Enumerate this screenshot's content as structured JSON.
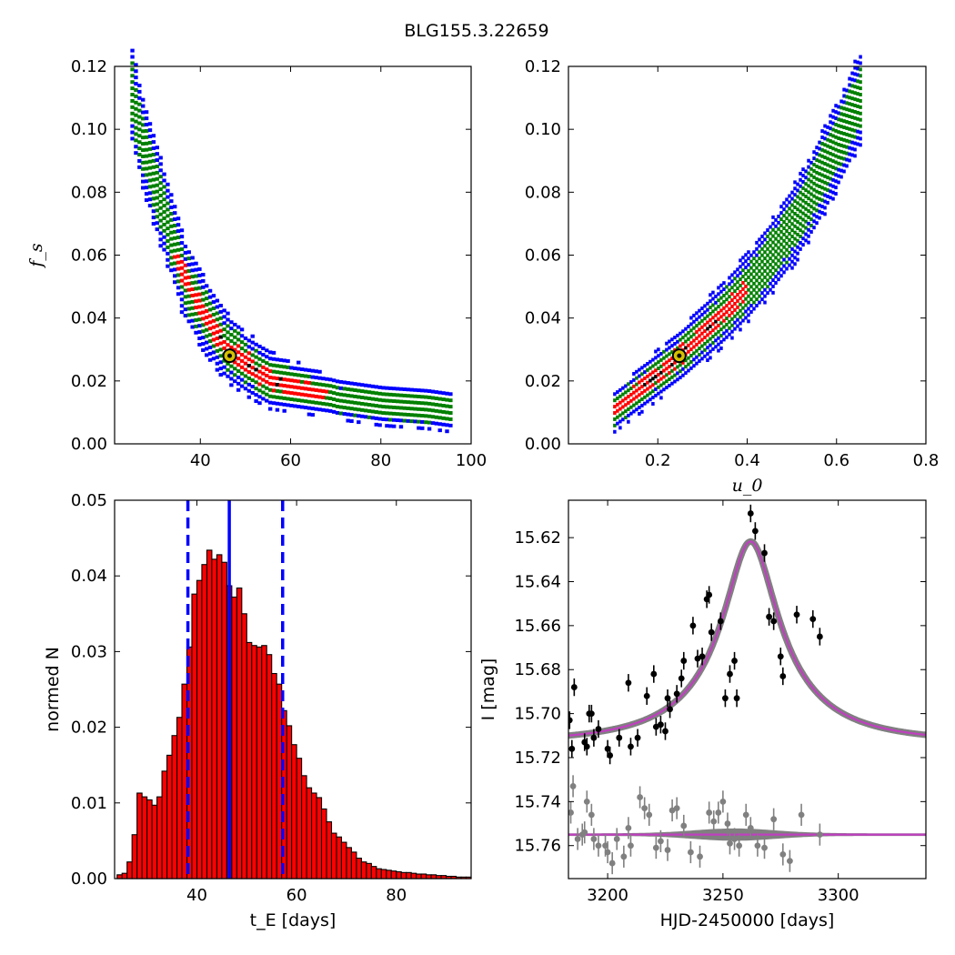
{
  "title": "BLG155.3.22659",
  "colors": {
    "contour_outer": "#0000ff",
    "contour_mid": "#008000",
    "contour_inner": "#ff0000",
    "contour_core": "#000000",
    "best_fit_marker": "#d6c000",
    "hist_bar": "#ff0000",
    "hist_line": "#0000ff",
    "model_line": "#bf3fbf",
    "model_band": "#808080",
    "data_primary": "#000000",
    "data_secondary": "#808080"
  },
  "chart_data": [
    {
      "id": "tE_fs",
      "type": "heatmap",
      "xlabel": "",
      "ylabel": "f_s",
      "xlim": [
        21,
        100
      ],
      "ylim": [
        0.0,
        0.12
      ],
      "xticks": [
        40,
        60,
        80,
        100
      ],
      "yticks": [
        0.0,
        0.02,
        0.04,
        0.06,
        0.08,
        0.1,
        0.12
      ],
      "xtick_labels": [
        "40",
        "60",
        "80",
        "100"
      ],
      "ytick_labels": [
        "0.00",
        "0.02",
        "0.04",
        "0.06",
        "0.08",
        "0.10",
        "0.12"
      ],
      "ridge": {
        "x": [
          24.5,
          27,
          30,
          33,
          36,
          40,
          45,
          50,
          55,
          60,
          65,
          70,
          80,
          90,
          95
        ],
        "y": [
          0.11,
          0.095,
          0.08,
          0.067,
          0.052,
          0.042,
          0.031,
          0.025,
          0.02,
          0.018,
          0.016,
          0.014,
          0.012,
          0.011,
          0.01
        ]
      },
      "best_fit": {
        "x": 46.5,
        "y": 0.028
      }
    },
    {
      "id": "u0_fs",
      "type": "heatmap",
      "xlabel": "u_0",
      "ylabel": "",
      "xlim": [
        0.0,
        0.8
      ],
      "ylim": [
        0.0,
        0.12
      ],
      "xticks": [
        0.2,
        0.4,
        0.6,
        0.8
      ],
      "yticks": [
        0.0,
        0.02,
        0.04,
        0.06,
        0.08,
        0.1,
        0.12
      ],
      "xtick_labels": [
        "0.2",
        "0.4",
        "0.6",
        "0.8"
      ],
      "ytick_labels": [
        "0.00",
        "0.02",
        "0.04",
        "0.06",
        "0.08",
        "0.10",
        "0.12"
      ],
      "ridge": {
        "x": [
          0.1,
          0.15,
          0.2,
          0.25,
          0.3,
          0.35,
          0.4,
          0.45,
          0.5,
          0.55,
          0.6,
          0.65
        ],
        "y": [
          0.01,
          0.016,
          0.022,
          0.028,
          0.035,
          0.042,
          0.05,
          0.059,
          0.069,
          0.081,
          0.095,
          0.11
        ]
      },
      "best_fit": {
        "x": 0.248,
        "y": 0.028
      }
    },
    {
      "id": "tE_hist",
      "type": "bar",
      "xlabel": "t_E  [days]",
      "ylabel": "normed N",
      "xlim": [
        23.5,
        95
      ],
      "ylim": [
        0.0,
        0.05
      ],
      "xticks": [
        40,
        60,
        80
      ],
      "yticks": [
        0.0,
        0.01,
        0.02,
        0.03,
        0.04,
        0.05
      ],
      "xtick_labels": [
        "40",
        "60",
        "80"
      ],
      "ytick_labels": [
        "0.00",
        "0.01",
        "0.02",
        "0.03",
        "0.04",
        "0.05"
      ],
      "bin_start": 24.0,
      "bin_width": 1.0,
      "values": [
        0.0005,
        0.0007,
        0.0022,
        0.0058,
        0.0113,
        0.0108,
        0.0104,
        0.0097,
        0.0108,
        0.0142,
        0.0163,
        0.0189,
        0.0213,
        0.0257,
        0.0306,
        0.0376,
        0.0394,
        0.0415,
        0.0434,
        0.0422,
        0.0428,
        0.0418,
        0.0387,
        0.0372,
        0.0384,
        0.035,
        0.0312,
        0.0308,
        0.0306,
        0.0308,
        0.0296,
        0.0271,
        0.0257,
        0.0222,
        0.0202,
        0.0177,
        0.0159,
        0.0136,
        0.012,
        0.0113,
        0.0107,
        0.0092,
        0.0075,
        0.006,
        0.0055,
        0.0048,
        0.0041,
        0.0035,
        0.0027,
        0.0022,
        0.002,
        0.0016,
        0.0013,
        0.0012,
        0.0011,
        0.001,
        0.0009,
        0.0008,
        0.0008,
        0.0007,
        0.0006,
        0.0006,
        0.0005,
        0.0005,
        0.0004,
        0.0004,
        0.0003,
        0.0003,
        0.0002,
        0.0002,
        0.0002
      ],
      "vlines": [
        {
          "x": 46.5,
          "style": "solid"
        },
        {
          "x": 38.2,
          "style": "dashed"
        },
        {
          "x": 57.2,
          "style": "dashed"
        }
      ]
    },
    {
      "id": "lightcurve",
      "type": "scatter",
      "xlabel": "HJD-2450000 [days]",
      "ylabel": "I [mag]",
      "xlim": [
        3183,
        3338
      ],
      "ylim": [
        15.775,
        15.603
      ],
      "y_inverted": true,
      "xticks": [
        3200,
        3250,
        3300
      ],
      "yticks": [
        15.62,
        15.64,
        15.66,
        15.68,
        15.7,
        15.72,
        15.74,
        15.76
      ],
      "xtick_labels": [
        "3200",
        "3250",
        "3300"
      ],
      "ytick_labels": [
        "15.62",
        "15.64",
        "15.66",
        "15.68",
        "15.70",
        "15.72",
        "15.74",
        "15.76"
      ],
      "model": {
        "t0": 3262,
        "u0": 0.248,
        "tE": 46.5,
        "fs": 0.028,
        "I_base": 15.7128
      },
      "series": [
        {
          "role": "primary",
          "x": [
            3183.5,
            3184.5,
            3185.5,
            3190,
            3191,
            3192,
            3193,
            3194,
            3196,
            3200,
            3201,
            3205,
            3209,
            3210,
            3213,
            3217,
            3220,
            3221,
            3223,
            3225,
            3226,
            3227,
            3230,
            3232,
            3233,
            3237,
            3239,
            3241,
            3243,
            3244,
            3245,
            3249,
            3251,
            3253,
            3255,
            3256,
            3262,
            3264,
            3268,
            3270,
            3272,
            3275,
            3276,
            3282,
            3289,
            3292
          ],
          "y": [
            15.703,
            15.716,
            15.688,
            15.713,
            15.715,
            15.7,
            15.7,
            15.711,
            15.707,
            15.716,
            15.719,
            15.711,
            15.686,
            15.715,
            15.711,
            15.692,
            15.682,
            15.706,
            15.705,
            15.708,
            15.693,
            15.698,
            15.691,
            15.684,
            15.676,
            15.66,
            15.675,
            15.674,
            15.648,
            15.646,
            15.663,
            15.658,
            15.693,
            15.682,
            15.676,
            15.693,
            15.609,
            15.617,
            15.627,
            15.656,
            15.658,
            15.674,
            15.683,
            15.655,
            15.657,
            15.665
          ],
          "err": [
            0.004,
            0.004,
            0.004,
            0.004,
            0.004,
            0.004,
            0.004,
            0.004,
            0.004,
            0.004,
            0.004,
            0.004,
            0.004,
            0.004,
            0.004,
            0.004,
            0.004,
            0.004,
            0.004,
            0.004,
            0.004,
            0.004,
            0.004,
            0.004,
            0.004,
            0.004,
            0.004,
            0.004,
            0.004,
            0.004,
            0.004,
            0.004,
            0.004,
            0.004,
            0.004,
            0.004,
            0.004,
            0.004,
            0.004,
            0.004,
            0.004,
            0.004,
            0.004,
            0.004,
            0.004,
            0.004
          ]
        },
        {
          "role": "residual",
          "x": [
            3184,
            3185,
            3187,
            3189,
            3190,
            3191,
            3193,
            3194,
            3196,
            3199,
            3200,
            3202,
            3204,
            3207,
            3209,
            3210,
            3214,
            3216,
            3218,
            3221,
            3223,
            3226,
            3228,
            3230,
            3233,
            3236,
            3240,
            3244,
            3246,
            3248,
            3250,
            3252,
            3253,
            3255,
            3257,
            3260,
            3262,
            3265,
            3268,
            3272,
            3276,
            3279,
            3284,
            3292
          ],
          "y": [
            15.745,
            15.733,
            15.757,
            15.755,
            15.754,
            15.74,
            15.746,
            15.757,
            15.76,
            15.76,
            15.763,
            15.768,
            15.757,
            15.765,
            15.752,
            15.76,
            15.738,
            15.743,
            15.746,
            15.761,
            15.758,
            15.762,
            15.744,
            15.743,
            15.751,
            15.763,
            15.765,
            15.745,
            15.749,
            15.745,
            15.74,
            15.75,
            15.759,
            15.757,
            15.76,
            15.746,
            15.752,
            15.76,
            15.761,
            15.748,
            15.764,
            15.767,
            15.746,
            15.755
          ],
          "err": [
            0.005,
            0.005,
            0.005,
            0.005,
            0.005,
            0.005,
            0.005,
            0.005,
            0.005,
            0.005,
            0.005,
            0.005,
            0.005,
            0.005,
            0.005,
            0.005,
            0.005,
            0.005,
            0.005,
            0.005,
            0.005,
            0.005,
            0.005,
            0.005,
            0.005,
            0.005,
            0.005,
            0.005,
            0.005,
            0.005,
            0.005,
            0.005,
            0.005,
            0.005,
            0.005,
            0.005,
            0.005,
            0.005,
            0.005,
            0.005,
            0.005,
            0.005,
            0.005,
            0.005
          ]
        }
      ],
      "residual_baseline": 15.755
    }
  ]
}
